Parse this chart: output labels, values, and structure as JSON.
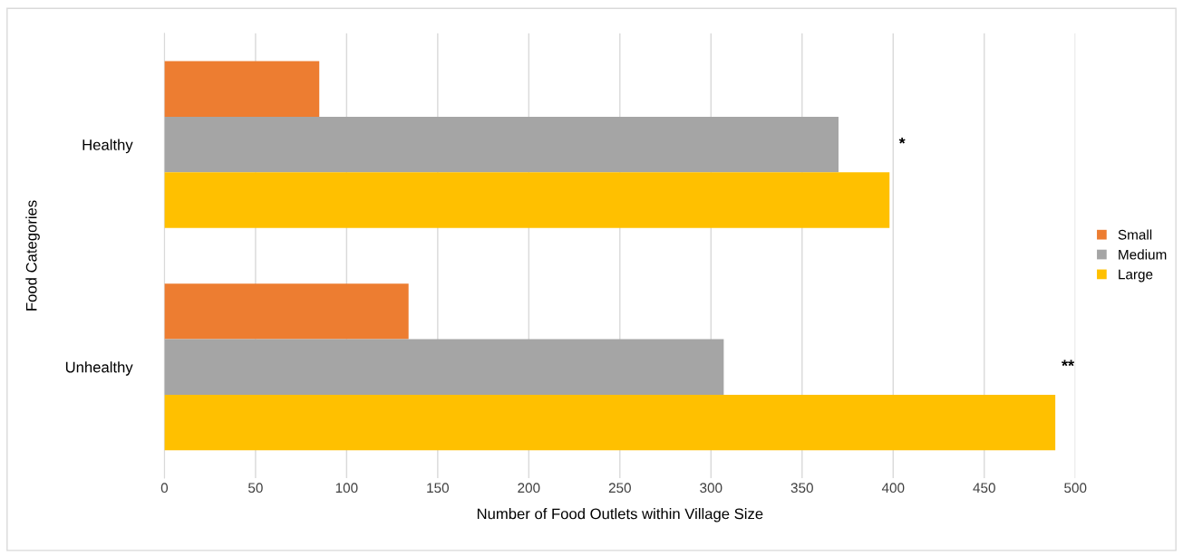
{
  "chart_data": {
    "type": "bar",
    "orientation": "horizontal",
    "xlabel": "Number of Food Outlets within Village Size",
    "ylabel": "Food Categories",
    "categories": [
      "Healthy",
      "Unhealthy"
    ],
    "series": [
      {
        "name": "Small",
        "color": "#ed7d31",
        "values": [
          85,
          134
        ]
      },
      {
        "name": "Medium",
        "color": "#a5a5a5",
        "values": [
          370,
          307
        ]
      },
      {
        "name": "Large",
        "color": "#ffc000",
        "values": [
          398,
          489
        ]
      }
    ],
    "xlim": [
      0,
      500
    ],
    "xticks": [
      0,
      50,
      100,
      150,
      200,
      250,
      300,
      350,
      400,
      450,
      500
    ],
    "grid": "x",
    "legend": "right",
    "annotations": [
      "*",
      "**"
    ]
  }
}
